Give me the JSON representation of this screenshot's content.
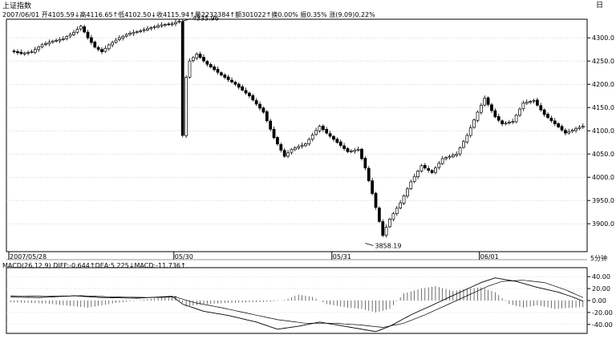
{
  "header": {
    "title": "上证指数",
    "info": "2007/06/01 开4105.59↓高4116.65↑低4102.50↓收4115.94↑量2232384↑额301022↑换0.00% 振0.35% 涨(9.09)0.22%",
    "corner_icon": "日"
  },
  "macd_header": "MACD(26,12,9) DIFF:-0.644↑DEA:5.225↓MACD:-11.736↑",
  "period_label": "5分钟",
  "chart_data": [
    {
      "type": "candlestick",
      "title": "",
      "ylim": [
        3840,
        4340
      ],
      "y_ticks": [
        "4300.0",
        "4250.0",
        "4200.0",
        "4150.0",
        "4100.0",
        "4050.0",
        "4000.0",
        "3950.0",
        "3900.0"
      ],
      "y_tick_values": [
        4300,
        4250,
        4200,
        4150,
        4100,
        4050,
        4000,
        3950,
        3900
      ],
      "x_labels": [
        "2007/05/28",
        "05/30",
        "05/31",
        "06/01"
      ],
      "x_label_index": [
        0,
        47,
        92,
        134
      ],
      "annotations": [
        {
          "text": "4335.96",
          "index": 49,
          "value": 4335.96
        },
        {
          "text": "3858.19",
          "index": 101,
          "value": 3858.19
        }
      ],
      "price_path": [
        [
          0,
          4272
        ],
        [
          3,
          4266
        ],
        [
          6,
          4270
        ],
        [
          9,
          4285
        ],
        [
          12,
          4293
        ],
        [
          15,
          4298
        ],
        [
          18,
          4312
        ],
        [
          20,
          4325
        ],
        [
          22,
          4300
        ],
        [
          24,
          4280
        ],
        [
          26,
          4270
        ],
        [
          28,
          4285
        ],
        [
          31,
          4300
        ],
        [
          34,
          4310
        ],
        [
          37,
          4315
        ],
        [
          40,
          4322
        ],
        [
          43,
          4328
        ],
        [
          46,
          4330
        ],
        [
          48,
          4336
        ],
        [
          49,
          4090
        ],
        [
          50,
          4215
        ],
        [
          51,
          4250
        ],
        [
          53,
          4265
        ],
        [
          56,
          4243
        ],
        [
          60,
          4220
        ],
        [
          64,
          4200
        ],
        [
          68,
          4175
        ],
        [
          72,
          4140
        ],
        [
          75,
          4085
        ],
        [
          78,
          4045
        ],
        [
          80,
          4060
        ],
        [
          84,
          4072
        ],
        [
          88,
          4110
        ],
        [
          90,
          4095
        ],
        [
          93,
          4075
        ],
        [
          96,
          4055
        ],
        [
          99,
          4060
        ],
        [
          101,
          4020
        ],
        [
          103,
          3965
        ],
        [
          106,
          3875
        ],
        [
          108,
          3910
        ],
        [
          111,
          3945
        ],
        [
          114,
          3990
        ],
        [
          117,
          4025
        ],
        [
          120,
          4010
        ],
        [
          123,
          4040
        ],
        [
          127,
          4050
        ],
        [
          130,
          4090
        ],
        [
          133,
          4140
        ],
        [
          135,
          4170
        ],
        [
          138,
          4130
        ],
        [
          140,
          4115
        ],
        [
          143,
          4120
        ],
        [
          146,
          4160
        ],
        [
          149,
          4165
        ],
        [
          152,
          4135
        ],
        [
          155,
          4115
        ],
        [
          158,
          4095
        ],
        [
          161,
          4105
        ],
        [
          163,
          4110
        ]
      ]
    },
    {
      "type": "bar-line",
      "title": "",
      "ylim": [
        -55,
        55
      ],
      "y_ticks": [
        "40.00",
        "20.00",
        "0.00",
        "-20.00",
        "-40.00"
      ],
      "y_tick_values": [
        40,
        20,
        0,
        -20,
        -40
      ],
      "histogram_path": [
        [
          0,
          -3
        ],
        [
          10,
          -5
        ],
        [
          22,
          -12
        ],
        [
          30,
          -4
        ],
        [
          40,
          3
        ],
        [
          47,
          8
        ],
        [
          50,
          -10
        ],
        [
          55,
          -6
        ],
        [
          62,
          -4
        ],
        [
          68,
          -3
        ],
        [
          74,
          -2
        ],
        [
          78,
          1
        ],
        [
          82,
          10
        ],
        [
          86,
          6
        ],
        [
          90,
          -6
        ],
        [
          96,
          -12
        ],
        [
          100,
          -14
        ],
        [
          104,
          -20
        ],
        [
          108,
          -14
        ],
        [
          112,
          12
        ],
        [
          117,
          20
        ],
        [
          121,
          24
        ],
        [
          126,
          16
        ],
        [
          130,
          20
        ],
        [
          134,
          22
        ],
        [
          138,
          14
        ],
        [
          142,
          -6
        ],
        [
          146,
          -12
        ],
        [
          150,
          -8
        ],
        [
          155,
          -14
        ],
        [
          160,
          -12
        ],
        [
          163,
          -11
        ]
      ],
      "diff_path": [
        [
          0,
          6
        ],
        [
          8,
          5
        ],
        [
          18,
          8
        ],
        [
          26,
          5
        ],
        [
          36,
          4
        ],
        [
          46,
          7
        ],
        [
          49,
          -6
        ],
        [
          55,
          -18
        ],
        [
          62,
          -25
        ],
        [
          70,
          -36
        ],
        [
          76,
          -48
        ],
        [
          82,
          -43
        ],
        [
          88,
          -36
        ],
        [
          94,
          -42
        ],
        [
          100,
          -48
        ],
        [
          104,
          -52
        ],
        [
          108,
          -43
        ],
        [
          114,
          -24
        ],
        [
          120,
          -8
        ],
        [
          128,
          14
        ],
        [
          134,
          30
        ],
        [
          138,
          38
        ],
        [
          144,
          32
        ],
        [
          150,
          22
        ],
        [
          156,
          14
        ],
        [
          160,
          6
        ],
        [
          163,
          -1
        ]
      ],
      "dea_path": [
        [
          0,
          8
        ],
        [
          10,
          7
        ],
        [
          20,
          8
        ],
        [
          30,
          6
        ],
        [
          40,
          5
        ],
        [
          47,
          6
        ],
        [
          52,
          -3
        ],
        [
          60,
          -12
        ],
        [
          68,
          -22
        ],
        [
          76,
          -32
        ],
        [
          84,
          -38
        ],
        [
          92,
          -38
        ],
        [
          100,
          -41
        ],
        [
          106,
          -45
        ],
        [
          112,
          -38
        ],
        [
          118,
          -24
        ],
        [
          124,
          -8
        ],
        [
          130,
          8
        ],
        [
          136,
          24
        ],
        [
          140,
          32
        ],
        [
          146,
          34
        ],
        [
          152,
          30
        ],
        [
          158,
          18
        ],
        [
          163,
          5
        ]
      ]
    }
  ]
}
